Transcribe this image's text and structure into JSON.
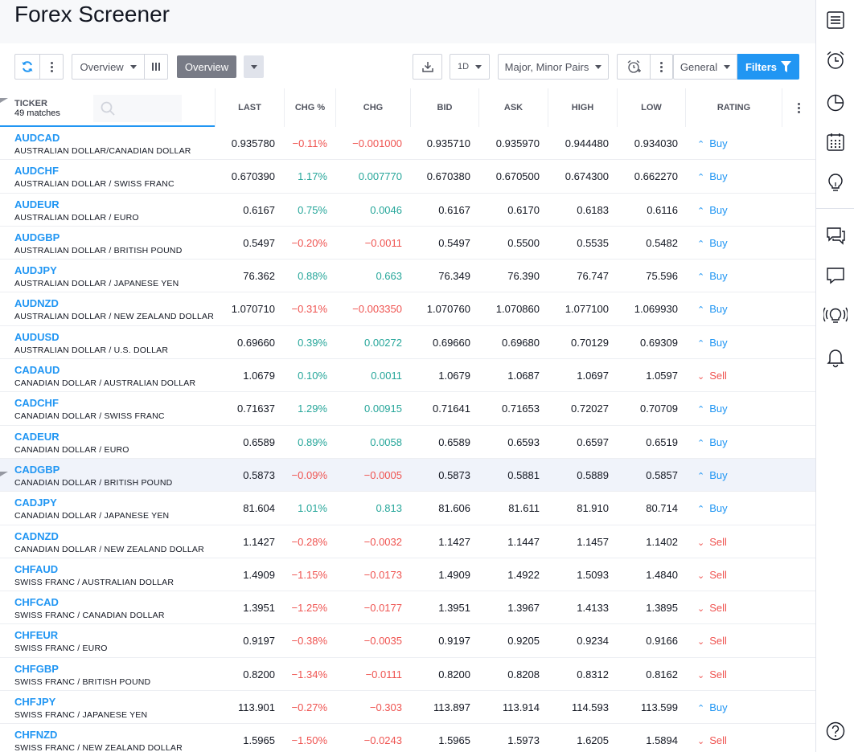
{
  "page": {
    "title": "Forex Screener"
  },
  "toolbar": {
    "overview_dropdown": "Overview",
    "overview_active": "Overview",
    "timeframe": "1D",
    "market": "Major, Minor Pairs",
    "category": "General",
    "filters": "Filters"
  },
  "table": {
    "ticker_label": "TICKER",
    "matches": "49 matches",
    "search_placeholder": "",
    "columns": [
      "LAST",
      "CHG %",
      "CHG",
      "BID",
      "ASK",
      "HIGH",
      "LOW",
      "RATING"
    ],
    "rows": [
      {
        "symbol": "AUDCAD",
        "desc": "AUSTRALIAN DOLLAR/CANADIAN DOLLAR",
        "last": "0.935780",
        "chgp": "−0.11%",
        "chg": "−0.001000",
        "bid": "0.935710",
        "ask": "0.935970",
        "high": "0.944480",
        "low": "0.934030",
        "rating": "Buy",
        "dir": "neg"
      },
      {
        "symbol": "AUDCHF",
        "desc": "AUSTRALIAN DOLLAR / SWISS FRANC",
        "last": "0.670390",
        "chgp": "1.17%",
        "chg": "0.007770",
        "bid": "0.670380",
        "ask": "0.670500",
        "high": "0.674300",
        "low": "0.662270",
        "rating": "Buy",
        "dir": "pos"
      },
      {
        "symbol": "AUDEUR",
        "desc": "AUSTRALIAN DOLLAR / EURO",
        "last": "0.6167",
        "chgp": "0.75%",
        "chg": "0.0046",
        "bid": "0.6167",
        "ask": "0.6170",
        "high": "0.6183",
        "low": "0.6116",
        "rating": "Buy",
        "dir": "pos"
      },
      {
        "symbol": "AUDGBP",
        "desc": "AUSTRALIAN DOLLAR / BRITISH POUND",
        "last": "0.5497",
        "chgp": "−0.20%",
        "chg": "−0.0011",
        "bid": "0.5497",
        "ask": "0.5500",
        "high": "0.5535",
        "low": "0.5482",
        "rating": "Buy",
        "dir": "neg"
      },
      {
        "symbol": "AUDJPY",
        "desc": "AUSTRALIAN DOLLAR / JAPANESE YEN",
        "last": "76.362",
        "chgp": "0.88%",
        "chg": "0.663",
        "bid": "76.349",
        "ask": "76.390",
        "high": "76.747",
        "low": "75.596",
        "rating": "Buy",
        "dir": "pos"
      },
      {
        "symbol": "AUDNZD",
        "desc": "AUSTRALIAN DOLLAR / NEW ZEALAND DOLLAR",
        "last": "1.070710",
        "chgp": "−0.31%",
        "chg": "−0.003350",
        "bid": "1.070760",
        "ask": "1.070860",
        "high": "1.077100",
        "low": "1.069930",
        "rating": "Buy",
        "dir": "neg"
      },
      {
        "symbol": "AUDUSD",
        "desc": "AUSTRALIAN DOLLAR / U.S. DOLLAR",
        "last": "0.69660",
        "chgp": "0.39%",
        "chg": "0.00272",
        "bid": "0.69660",
        "ask": "0.69680",
        "high": "0.70129",
        "low": "0.69309",
        "rating": "Buy",
        "dir": "pos"
      },
      {
        "symbol": "CADAUD",
        "desc": "CANADIAN DOLLAR / AUSTRALIAN DOLLAR",
        "last": "1.0679",
        "chgp": "0.10%",
        "chg": "0.0011",
        "bid": "1.0679",
        "ask": "1.0687",
        "high": "1.0697",
        "low": "1.0597",
        "rating": "Sell",
        "dir": "pos"
      },
      {
        "symbol": "CADCHF",
        "desc": "CANADIAN DOLLAR / SWISS FRANC",
        "last": "0.71637",
        "chgp": "1.29%",
        "chg": "0.00915",
        "bid": "0.71641",
        "ask": "0.71653",
        "high": "0.72027",
        "low": "0.70709",
        "rating": "Buy",
        "dir": "pos"
      },
      {
        "symbol": "CADEUR",
        "desc": "CANADIAN DOLLAR / EURO",
        "last": "0.6589",
        "chgp": "0.89%",
        "chg": "0.0058",
        "bid": "0.6589",
        "ask": "0.6593",
        "high": "0.6597",
        "low": "0.6519",
        "rating": "Buy",
        "dir": "pos"
      },
      {
        "symbol": "CADGBP",
        "desc": "CANADIAN DOLLAR / BRITISH POUND",
        "last": "0.5873",
        "chgp": "−0.09%",
        "chg": "−0.0005",
        "bid": "0.5873",
        "ask": "0.5881",
        "high": "0.5889",
        "low": "0.5857",
        "rating": "Buy",
        "dir": "neg",
        "highlighted": true
      },
      {
        "symbol": "CADJPY",
        "desc": "CANADIAN DOLLAR / JAPANESE YEN",
        "last": "81.604",
        "chgp": "1.01%",
        "chg": "0.813",
        "bid": "81.606",
        "ask": "81.611",
        "high": "81.910",
        "low": "80.714",
        "rating": "Buy",
        "dir": "pos"
      },
      {
        "symbol": "CADNZD",
        "desc": "CANADIAN DOLLAR / NEW ZEALAND DOLLAR",
        "last": "1.1427",
        "chgp": "−0.28%",
        "chg": "−0.0032",
        "bid": "1.1427",
        "ask": "1.1447",
        "high": "1.1457",
        "low": "1.1402",
        "rating": "Sell",
        "dir": "neg"
      },
      {
        "symbol": "CHFAUD",
        "desc": "SWISS FRANC / AUSTRALIAN DOLLAR",
        "last": "1.4909",
        "chgp": "−1.15%",
        "chg": "−0.0173",
        "bid": "1.4909",
        "ask": "1.4922",
        "high": "1.5093",
        "low": "1.4840",
        "rating": "Sell",
        "dir": "neg"
      },
      {
        "symbol": "CHFCAD",
        "desc": "SWISS FRANC / CANADIAN DOLLAR",
        "last": "1.3951",
        "chgp": "−1.25%",
        "chg": "−0.0177",
        "bid": "1.3951",
        "ask": "1.3967",
        "high": "1.4133",
        "low": "1.3895",
        "rating": "Sell",
        "dir": "neg"
      },
      {
        "symbol": "CHFEUR",
        "desc": "SWISS FRANC / EURO",
        "last": "0.9197",
        "chgp": "−0.38%",
        "chg": "−0.0035",
        "bid": "0.9197",
        "ask": "0.9205",
        "high": "0.9234",
        "low": "0.9166",
        "rating": "Sell",
        "dir": "neg"
      },
      {
        "symbol": "CHFGBP",
        "desc": "SWISS FRANC / BRITISH POUND",
        "last": "0.8200",
        "chgp": "−1.34%",
        "chg": "−0.0111",
        "bid": "0.8200",
        "ask": "0.8208",
        "high": "0.8312",
        "low": "0.8162",
        "rating": "Sell",
        "dir": "neg"
      },
      {
        "symbol": "CHFJPY",
        "desc": "SWISS FRANC / JAPANESE YEN",
        "last": "113.901",
        "chgp": "−0.27%",
        "chg": "−0.303",
        "bid": "113.897",
        "ask": "113.914",
        "high": "114.593",
        "low": "113.599",
        "rating": "Buy",
        "dir": "neg"
      },
      {
        "symbol": "CHFNZD",
        "desc": "SWISS FRANC / NEW ZEALAND DOLLAR",
        "last": "1.5965",
        "chgp": "−1.50%",
        "chg": "−0.0243",
        "bid": "1.5965",
        "ask": "1.5973",
        "high": "1.6205",
        "low": "1.5894",
        "rating": "Sell",
        "dir": "neg"
      }
    ]
  },
  "sidebar": {
    "icons": [
      "watchlist-icon",
      "alarm-clock-icon",
      "data-window-icon",
      "calendar-icon",
      "ideas-bulb-icon",
      "chats-icon",
      "chat-icon",
      "streams-icon",
      "notifications-bell-icon",
      "help-icon"
    ]
  },
  "colors": {
    "accent": "#2196f3",
    "positive": "#26a69a",
    "negative": "#ef5350",
    "active_tab": "#787b86"
  }
}
